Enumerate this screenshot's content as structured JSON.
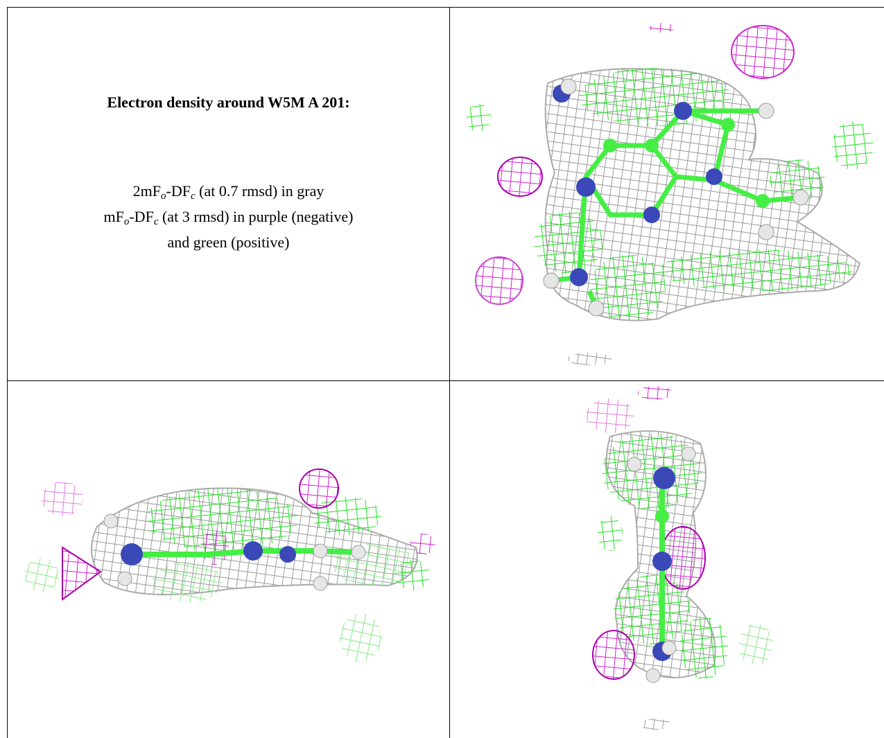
{
  "caption": {
    "title": "Electron density around W5M A 201:",
    "lines": [
      [
        {
          "text": "2mF"
        },
        {
          "sub": "o"
        },
        {
          "text": "-DF"
        },
        {
          "sub": "c"
        },
        {
          "text": " (at 0.7 rmsd) in gray"
        }
      ],
      [
        {
          "text": "mF"
        },
        {
          "sub": "o"
        },
        {
          "text": "-DF"
        },
        {
          "sub": "c"
        },
        {
          "text": " (at 3 rmsd) in purple (negative)"
        }
      ],
      [
        {
          "text": "and green (positive)"
        }
      ]
    ]
  }
}
